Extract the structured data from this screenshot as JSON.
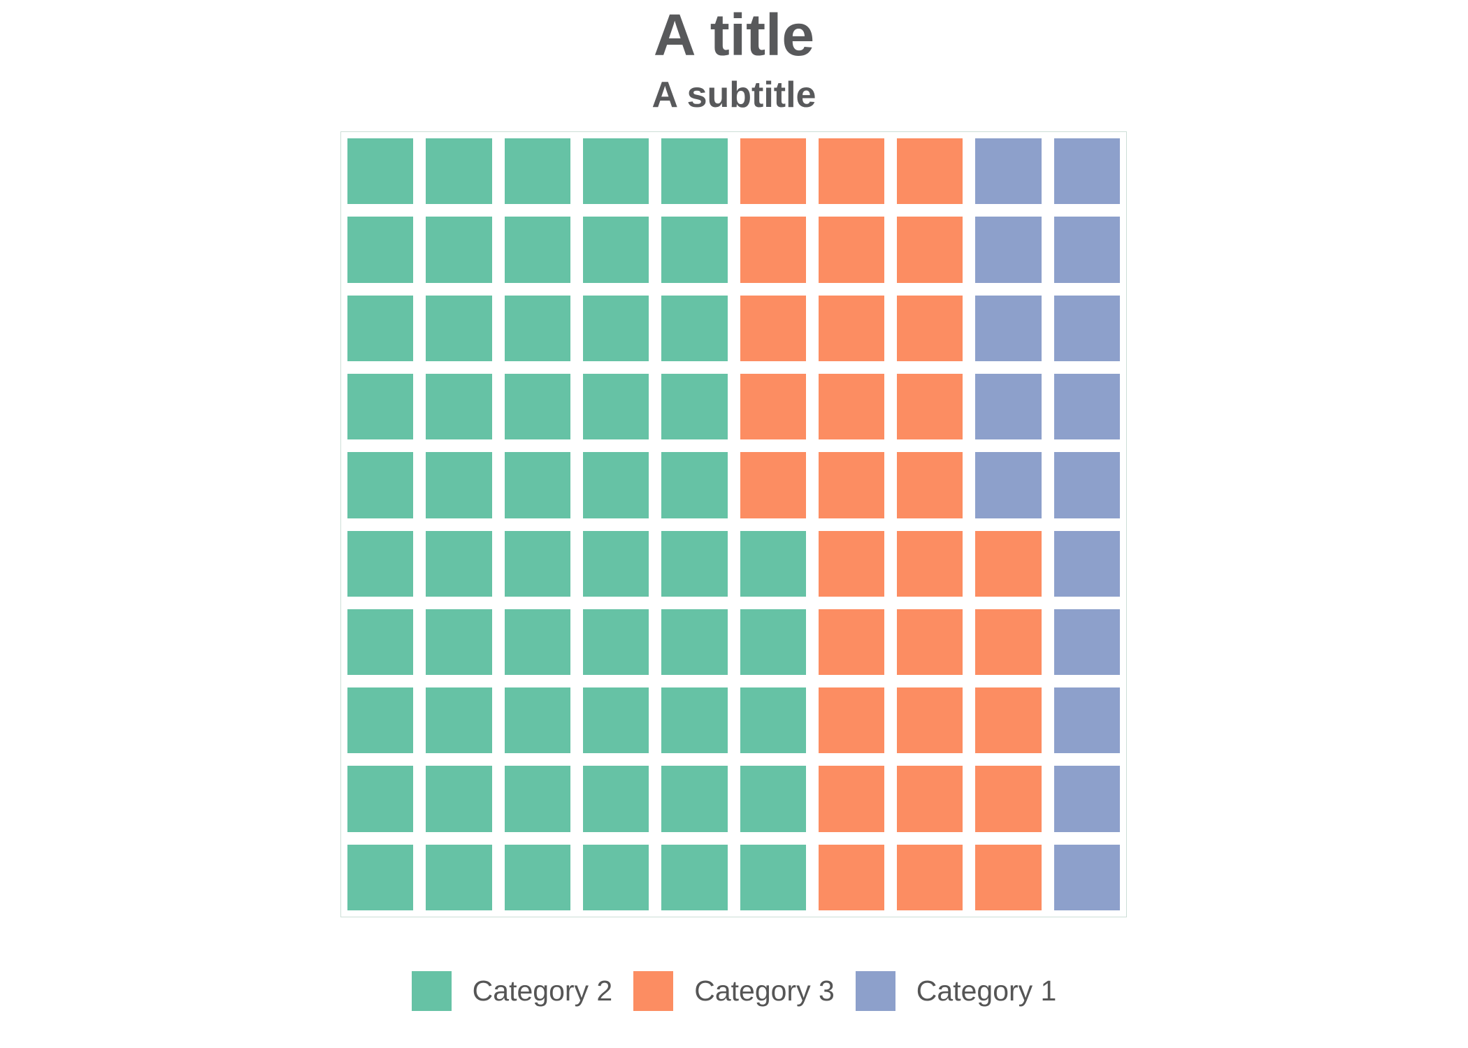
{
  "title": "A title",
  "subtitle": "A subtitle",
  "legend": {
    "position": "bottom",
    "items": [
      {
        "key": "2",
        "label": "Category 2",
        "color": "#66C2A5"
      },
      {
        "key": "3",
        "label": "Category 3",
        "color": "#FC8D62"
      },
      {
        "key": "1",
        "label": "Category 1",
        "color": "#8DA0CB"
      }
    ]
  },
  "chart_data": {
    "type": "waffle",
    "title": "A title",
    "subtitle": "A subtitle",
    "categories": [
      "Category 2",
      "Category 3",
      "Category 1"
    ],
    "values": [
      55,
      30,
      15
    ],
    "colors": [
      "#66C2A5",
      "#FC8D62",
      "#8DA0CB"
    ],
    "total_cells": 100,
    "legend_position": "bottom",
    "grid": {
      "rows": 10,
      "cols": 10,
      "fill_order": "column-major, bottom-to-top, left-to-right",
      "row_matrix": [
        "2222233311",
        "2222233311",
        "2222233311",
        "2222233311",
        "2222233311",
        "2222223331",
        "2222223331",
        "2222223331",
        "2222223331",
        "2222223331"
      ]
    }
  },
  "colors": {
    "title_text": "#58595B",
    "subtitle_text": "#58595B",
    "legend_text": "#555555",
    "plot_border": "#cdded7",
    "background": "#FFFFFF"
  }
}
